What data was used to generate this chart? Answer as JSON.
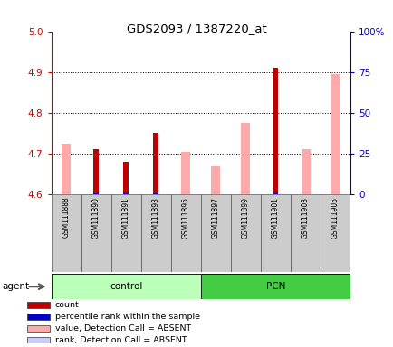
{
  "title": "GDS2093 / 1387220_at",
  "samples": [
    "GSM111888",
    "GSM111890",
    "GSM111891",
    "GSM111893",
    "GSM111895",
    "GSM111897",
    "GSM111899",
    "GSM111901",
    "GSM111903",
    "GSM111905"
  ],
  "count_values": [
    null,
    4.71,
    4.68,
    4.75,
    null,
    null,
    null,
    4.91,
    null,
    null
  ],
  "count_color": "#bb0000",
  "percentile_values": [
    null,
    4.602,
    4.602,
    4.602,
    null,
    null,
    null,
    4.602,
    null,
    null
  ],
  "percentile_color": "#0000cc",
  "absent_value_values": [
    4.725,
    null,
    null,
    null,
    4.705,
    4.668,
    4.775,
    null,
    4.71,
    4.895
  ],
  "absent_value_color": "#ffaaaa",
  "absent_rank_values": [
    4.601,
    null,
    null,
    null,
    4.601,
    4.601,
    4.601,
    null,
    4.601,
    4.601
  ],
  "absent_rank_color": "#ccccff",
  "ylim_left": [
    4.6,
    5.0
  ],
  "ylim_right": [
    0,
    100
  ],
  "yticks_left": [
    4.6,
    4.7,
    4.8,
    4.9,
    5.0
  ],
  "yticks_right": [
    0,
    25,
    50,
    75,
    100
  ],
  "ytick_labels_right": [
    "0",
    "25",
    "50",
    "75",
    "100%"
  ],
  "left_axis_color": "#cc0000",
  "right_axis_color": "#0000cc",
  "grid_yticks": [
    4.7,
    4.8,
    4.9
  ],
  "control_group_color": "#bbffbb",
  "pcn_group_color": "#44cc44",
  "group_label_control": "control",
  "group_label_pcn": "PCN",
  "agent_label": "agent",
  "legend": [
    {
      "color": "#bb0000",
      "label": "count"
    },
    {
      "color": "#0000cc",
      "label": "percentile rank within the sample"
    },
    {
      "color": "#ffaaaa",
      "label": "value, Detection Call = ABSENT"
    },
    {
      "color": "#ccccff",
      "label": "rank, Detection Call = ABSENT"
    }
  ]
}
